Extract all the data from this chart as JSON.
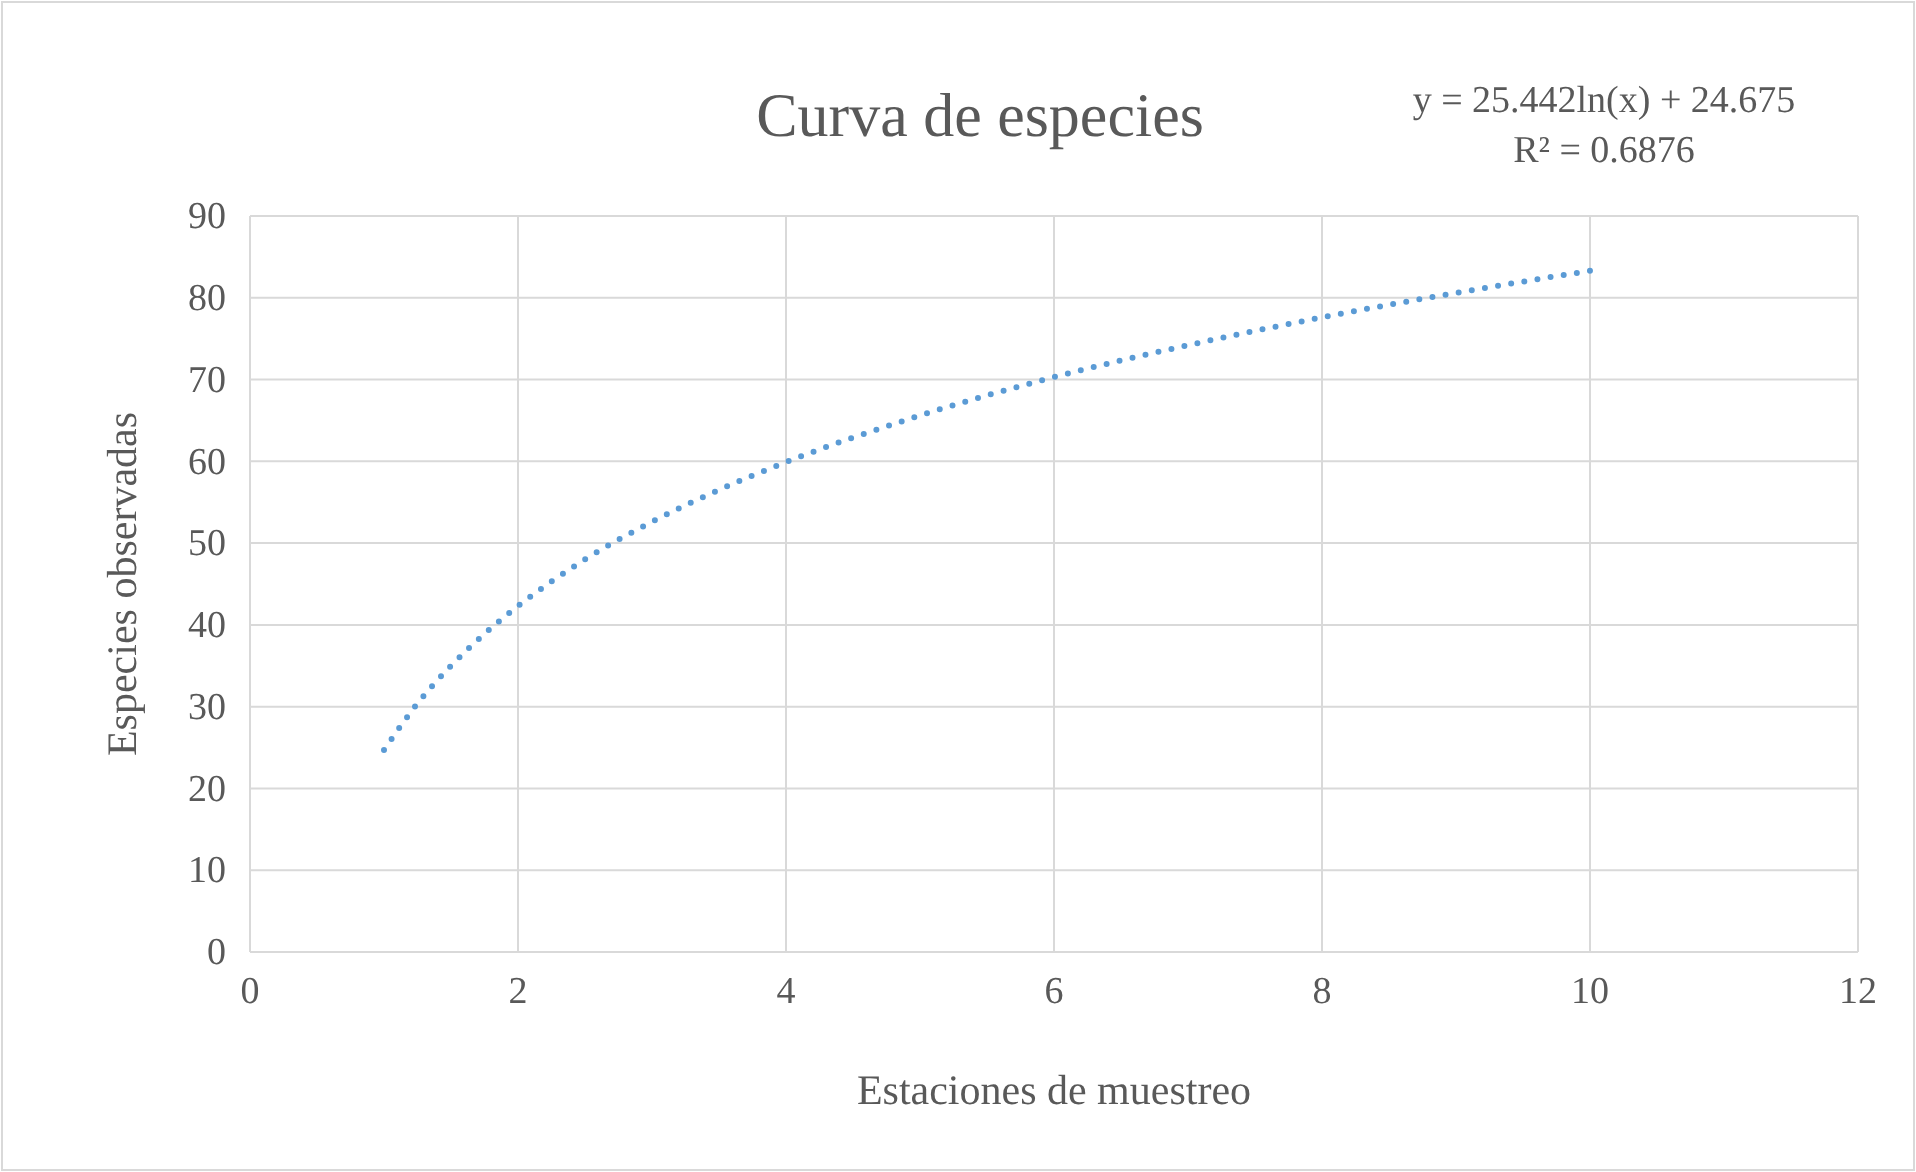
{
  "chart_data": {
    "type": "line",
    "title": "Curva de especies",
    "xlabel": "Estaciones de muestreo",
    "ylabel": "Especies observadas",
    "annotations": [
      "y = 25.442ln(x) + 24.675",
      "R² = 0.6876"
    ],
    "x": [
      1,
      1.25,
      1.5,
      1.75,
      2,
      2.5,
      3,
      3.5,
      4,
      5,
      6,
      7,
      8,
      9,
      10
    ],
    "series": [
      {
        "color": "#5b9bd5",
        "values": [
          24.7,
          30.4,
          35.0,
          38.9,
          42.3,
          48.0,
          52.6,
          56.5,
          59.9,
          65.6,
          70.3,
          74.2,
          77.6,
          80.6,
          83.3
        ]
      }
    ],
    "xlim": [
      0,
      12
    ],
    "xticks": [
      0,
      2,
      4,
      6,
      8,
      10,
      12
    ],
    "ylim": [
      0,
      90
    ],
    "yticks": [
      0,
      10,
      20,
      30,
      40,
      50,
      60,
      70,
      80,
      90
    ],
    "grid": true,
    "line_style": "dotted",
    "marker": "none"
  }
}
